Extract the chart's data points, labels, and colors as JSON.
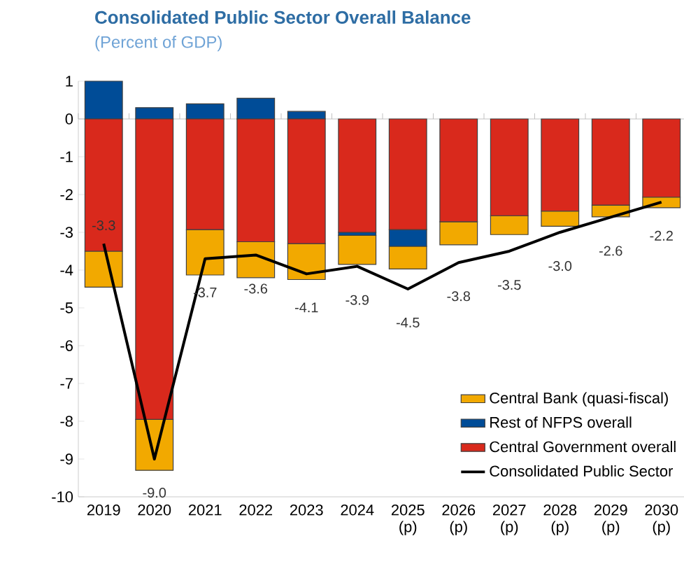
{
  "chart_data": {
    "type": "bar",
    "stacked": true,
    "title": "Consolidated Public Sector Overall Balance",
    "subtitle": "(Percent of GDP)",
    "categories": [
      "2019",
      "2020",
      "2021",
      "2022",
      "2023",
      "2024",
      "2025 (p)",
      "2026 (p)",
      "2027 (p)",
      "2028 (p)",
      "2029 (p)",
      "2030 (p)"
    ],
    "series": [
      {
        "name": "Central Government overall",
        "color": "#d9291c",
        "values": [
          -3.5,
          -7.95,
          -2.93,
          -3.25,
          -3.3,
          -3.0,
          -2.93,
          -2.72,
          -2.56,
          -2.44,
          -2.28,
          -2.07
        ]
      },
      {
        "name": "Rest of NFPS overall",
        "color": "#004c97",
        "values": [
          1.0,
          0.3,
          0.4,
          0.55,
          0.2,
          -0.08,
          -0.44,
          null,
          null,
          null,
          null,
          null
        ]
      },
      {
        "name": "Central Bank (quasi-fiscal)",
        "color": "#f2a900",
        "values": [
          -0.95,
          -1.35,
          -1.2,
          -0.95,
          -0.95,
          -0.77,
          -0.6,
          -0.61,
          -0.5,
          -0.4,
          -0.31,
          -0.28
        ]
      },
      {
        "name": "Consolidated Public Sector",
        "type": "line",
        "color": "#000000",
        "values": [
          -3.3,
          -9.0,
          -3.7,
          -3.6,
          -4.1,
          -3.9,
          -4.5,
          -3.8,
          -3.5,
          -3.0,
          -2.6,
          -2.2
        ],
        "value_labels": [
          "-3.3",
          "-9.0",
          "-3.7",
          "-3.6",
          "-4.1",
          "-3.9",
          "-4.5",
          "-3.8",
          "-3.5",
          "-3.0",
          "-2.6",
          "-2.2"
        ]
      }
    ],
    "ylim": [
      -10,
      1
    ],
    "yticks": [
      -10,
      -9,
      -8,
      -7,
      -6,
      -5,
      -4,
      -3,
      -2,
      -1,
      0,
      1
    ],
    "legend": "bottom right"
  }
}
